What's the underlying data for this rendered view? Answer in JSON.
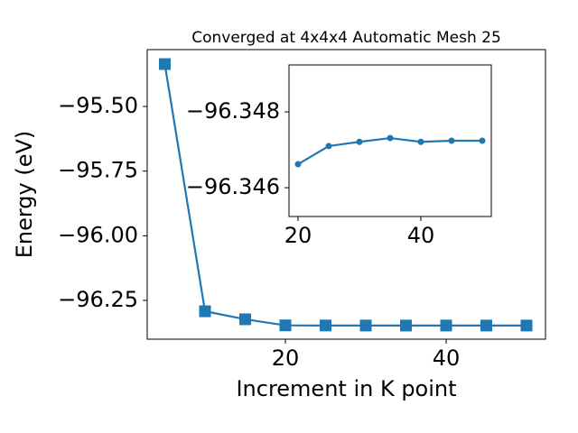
{
  "chart_data": [
    {
      "type": "line",
      "title": "Converged at 4x4x4 Automatic Mesh 25",
      "x_label": "Increment in K point",
      "y_label": "Energy (eV)",
      "x": [
        5,
        10,
        15,
        20,
        25,
        30,
        35,
        40,
        45,
        50
      ],
      "series": [
        {
          "color": "#1f77b4",
          "marker": "square",
          "values": [
            -95.336,
            -96.292,
            -96.323,
            -96.34662,
            -96.3471,
            -96.34721,
            -96.34731,
            -96.34721,
            -96.34724,
            -96.34724
          ]
        }
      ],
      "xlim": [
        2.81,
        52.36
      ],
      "xticks": [
        20,
        40
      ],
      "ylim": [
        -96.4,
        -95.28
      ],
      "yticks": [
        {
          "value": -95.5,
          "label": "−95.50"
        },
        {
          "value": -95.75,
          "label": "−95.75"
        },
        {
          "value": -96.0,
          "label": "−96.00"
        },
        {
          "value": -96.25,
          "label": "−96.25"
        }
      ]
    },
    {
      "type": "line",
      "x": [
        20,
        25,
        30,
        35,
        40,
        45,
        50
      ],
      "series": [
        {
          "color": "#1f77b4",
          "marker": "circle",
          "values": [
            -96.34662,
            -96.3471,
            -96.34721,
            -96.34731,
            -96.34721,
            -96.34724,
            -96.34724
          ]
        }
      ],
      "xlim": [
        18.53,
        51.47
      ],
      "xticks": [
        20,
        40
      ],
      "ylim": [
        -96.34524,
        -96.34924
      ],
      "yticks": [
        {
          "value": -96.348,
          "label": "−96.348"
        },
        {
          "value": -96.346,
          "label": "−96.346"
        }
      ]
    }
  ]
}
